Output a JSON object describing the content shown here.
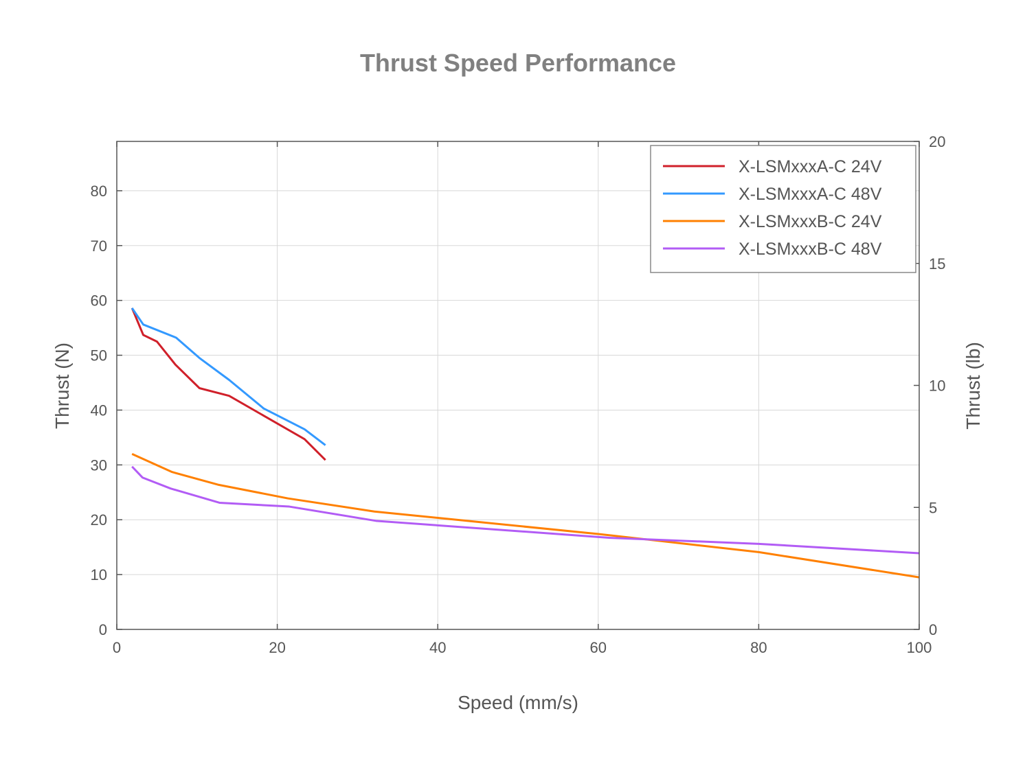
{
  "chart_data": {
    "type": "line",
    "title": "Thrust Speed Performance",
    "xlabel": "Speed (mm/s)",
    "ylabel": "Thrust (N)",
    "y2label": "Thrust (lb)",
    "xlim": [
      0,
      100
    ],
    "ylim": [
      0,
      89
    ],
    "y2lim": [
      0,
      20
    ],
    "xticks": [
      0,
      20,
      40,
      60,
      80,
      100
    ],
    "yticks": [
      0,
      10,
      20,
      30,
      40,
      50,
      60,
      70,
      80
    ],
    "y2ticks": [
      0,
      5,
      10,
      15,
      20
    ],
    "grid": true,
    "legend_position": "top-right",
    "series": [
      {
        "name": "X-LSMxxxA-C 24V",
        "color": "#d0202a",
        "x": [
          1.9,
          3.3,
          5.0,
          7.3,
          10.3,
          14.0,
          23.4,
          26.0
        ],
        "y": [
          58.6,
          53.7,
          52.5,
          48.3,
          44.0,
          42.6,
          34.7,
          30.9
        ]
      },
      {
        "name": "X-LSMxxxA-C 48V",
        "color": "#3399ff",
        "x": [
          1.9,
          3.3,
          7.4,
          10.3,
          14.0,
          18.3,
          23.4,
          26.0
        ],
        "y": [
          58.6,
          55.6,
          53.2,
          49.5,
          45.5,
          40.3,
          36.5,
          33.6
        ]
      },
      {
        "name": "X-LSMxxxB-C 24V",
        "color": "#ff8000",
        "x": [
          1.9,
          6.9,
          12.6,
          21.3,
          32.1,
          60,
          80,
          100
        ],
        "y": [
          32.0,
          28.7,
          26.4,
          23.9,
          21.5,
          17.4,
          14.1,
          9.5
        ]
      },
      {
        "name": "X-LSMxxxB-C 48V",
        "color": "#b25cf5",
        "x": [
          1.9,
          3.2,
          6.7,
          12.8,
          21.5,
          32.3,
          61.5,
          80,
          100
        ],
        "y": [
          29.7,
          27.7,
          25.7,
          23.1,
          22.4,
          19.8,
          16.7,
          15.6,
          13.9
        ]
      }
    ]
  }
}
